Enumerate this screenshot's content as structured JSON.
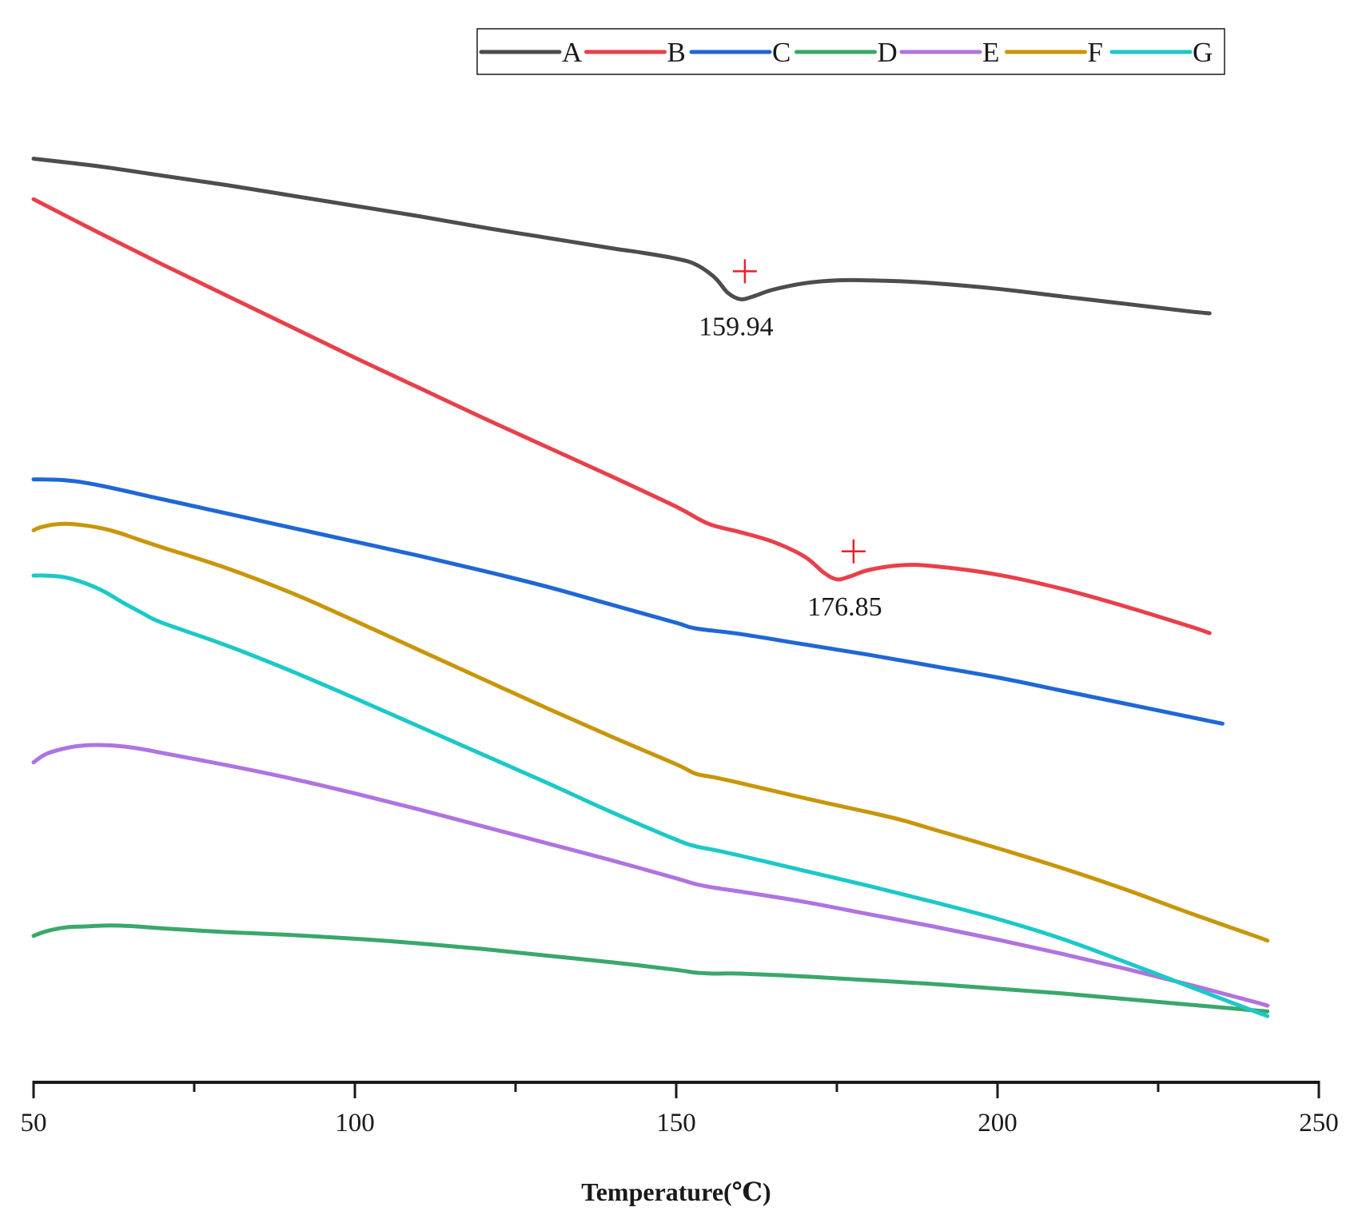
{
  "chart_data": {
    "type": "line",
    "title": "",
    "xlabel": "Temperature(℃)",
    "ylabel": "",
    "xlim": [
      50,
      250
    ],
    "ylim": [
      0,
      100
    ],
    "x_ticks": [
      "50",
      "100",
      "150",
      "200",
      "250"
    ],
    "x_tick_values": [
      50,
      100,
      150,
      200,
      250
    ],
    "x_minor_ticks": [
      75,
      125,
      175,
      225
    ],
    "y_axis_shown": false,
    "grid": false,
    "legend_position": "top",
    "series": [
      {
        "name": "A",
        "color": "#4d4d4d",
        "x": [
          50,
          60,
          70,
          80,
          90,
          100,
          110,
          120,
          130,
          140,
          145,
          150,
          153,
          156,
          158,
          160,
          162,
          165,
          170,
          175,
          180,
          185,
          190,
          200,
          210,
          220,
          230,
          233
        ],
        "y": [
          92.5,
          91.7,
          90.7,
          89.7,
          88.6,
          87.5,
          86.4,
          85.2,
          84.1,
          83.0,
          82.5,
          81.9,
          81.3,
          79.9,
          78.3,
          77.6,
          77.9,
          78.6,
          79.3,
          79.6,
          79.6,
          79.5,
          79.3,
          78.7,
          77.9,
          77.1,
          76.3,
          76.1
        ]
      },
      {
        "name": "B",
        "color": "#e8404a",
        "x": [
          50,
          60,
          70,
          80,
          90,
          100,
          110,
          120,
          130,
          140,
          150,
          155,
          160,
          165,
          170,
          173,
          175,
          177,
          180,
          185,
          190,
          200,
          210,
          220,
          230,
          233
        ],
        "y": [
          88.2,
          84.7,
          81.3,
          78.0,
          74.7,
          71.4,
          68.2,
          65.0,
          61.9,
          58.8,
          55.6,
          53.8,
          52.9,
          51.9,
          50.3,
          48.6,
          47.9,
          48.2,
          48.9,
          49.4,
          49.3,
          48.4,
          46.9,
          45.0,
          42.9,
          42.2
        ]
      },
      {
        "name": "C",
        "color": "#1f67d6",
        "x": [
          50,
          55,
          60,
          70,
          80,
          90,
          100,
          110,
          120,
          130,
          140,
          150,
          153,
          160,
          170,
          180,
          190,
          200,
          210,
          220,
          230,
          235
        ],
        "y": [
          58.5,
          58.4,
          57.9,
          56.4,
          54.9,
          53.4,
          51.9,
          50.4,
          48.8,
          47.1,
          45.2,
          43.3,
          42.7,
          42.1,
          41.0,
          39.9,
          38.7,
          37.5,
          36.1,
          34.7,
          33.3,
          32.6
        ]
      },
      {
        "name": "D",
        "color": "#39a86a",
        "x": [
          50,
          52,
          55,
          58,
          62,
          66,
          70,
          80,
          90,
          100,
          110,
          120,
          130,
          140,
          150,
          153,
          156,
          160,
          170,
          180,
          190,
          200,
          210,
          220,
          230,
          240,
          242
        ],
        "y": [
          10.1,
          10.6,
          11.0,
          11.1,
          11.2,
          11.1,
          10.9,
          10.5,
          10.2,
          9.8,
          9.3,
          8.7,
          8.0,
          7.3,
          6.5,
          6.2,
          6.1,
          6.1,
          5.8,
          5.4,
          5.0,
          4.5,
          4.0,
          3.4,
          2.8,
          2.2,
          2.1
        ]
      },
      {
        "name": "E",
        "color": "#b073e0",
        "x": [
          50,
          52,
          55,
          58,
          62,
          66,
          70,
          80,
          90,
          100,
          110,
          120,
          130,
          140,
          150,
          153,
          156,
          160,
          170,
          180,
          190,
          200,
          210,
          220,
          230,
          240,
          242
        ],
        "y": [
          28.5,
          29.4,
          30.0,
          30.3,
          30.3,
          30.0,
          29.5,
          28.2,
          26.8,
          25.2,
          23.5,
          21.7,
          19.9,
          18.1,
          16.2,
          15.6,
          15.2,
          14.8,
          13.7,
          12.4,
          11.1,
          9.7,
          8.2,
          6.6,
          4.9,
          3.1,
          2.7
        ]
      },
      {
        "name": "F",
        "color": "#c8960a",
        "x": [
          50,
          51,
          53,
          55,
          57,
          60,
          63,
          66,
          70,
          80,
          90,
          100,
          110,
          120,
          130,
          140,
          150,
          153,
          156,
          160,
          170,
          180,
          185,
          190,
          200,
          210,
          220,
          230,
          240,
          242
        ],
        "y": [
          53.1,
          53.4,
          53.7,
          53.8,
          53.7,
          53.4,
          52.9,
          52.2,
          51.3,
          49.1,
          46.5,
          43.5,
          40.4,
          37.3,
          34.2,
          31.2,
          28.3,
          27.3,
          26.9,
          26.3,
          24.7,
          23.2,
          22.4,
          21.4,
          19.4,
          17.3,
          15.0,
          12.5,
          10.1,
          9.6
        ]
      },
      {
        "name": "G",
        "color": "#1cc8c8",
        "x": [
          50,
          52,
          55,
          58,
          61,
          64,
          67,
          70,
          80,
          90,
          100,
          110,
          120,
          130,
          140,
          150,
          153,
          156,
          160,
          170,
          180,
          190,
          200,
          210,
          220,
          230,
          240,
          242
        ],
        "y": [
          48.3,
          48.3,
          48.1,
          47.5,
          46.6,
          45.4,
          44.3,
          43.3,
          40.9,
          38.2,
          35.3,
          32.3,
          29.3,
          26.3,
          23.2,
          20.3,
          19.6,
          19.2,
          18.6,
          17.0,
          15.4,
          13.7,
          11.9,
          9.8,
          7.3,
          4.7,
          2.1,
          1.6
        ]
      }
    ],
    "annotations": [
      {
        "label": "159.94",
        "series": "A",
        "x": 159.94,
        "y": 77.6
      },
      {
        "label": "176.85",
        "series": "B",
        "x": 176.85,
        "y": 47.9
      }
    ],
    "marker_color": "#e8202a"
  }
}
